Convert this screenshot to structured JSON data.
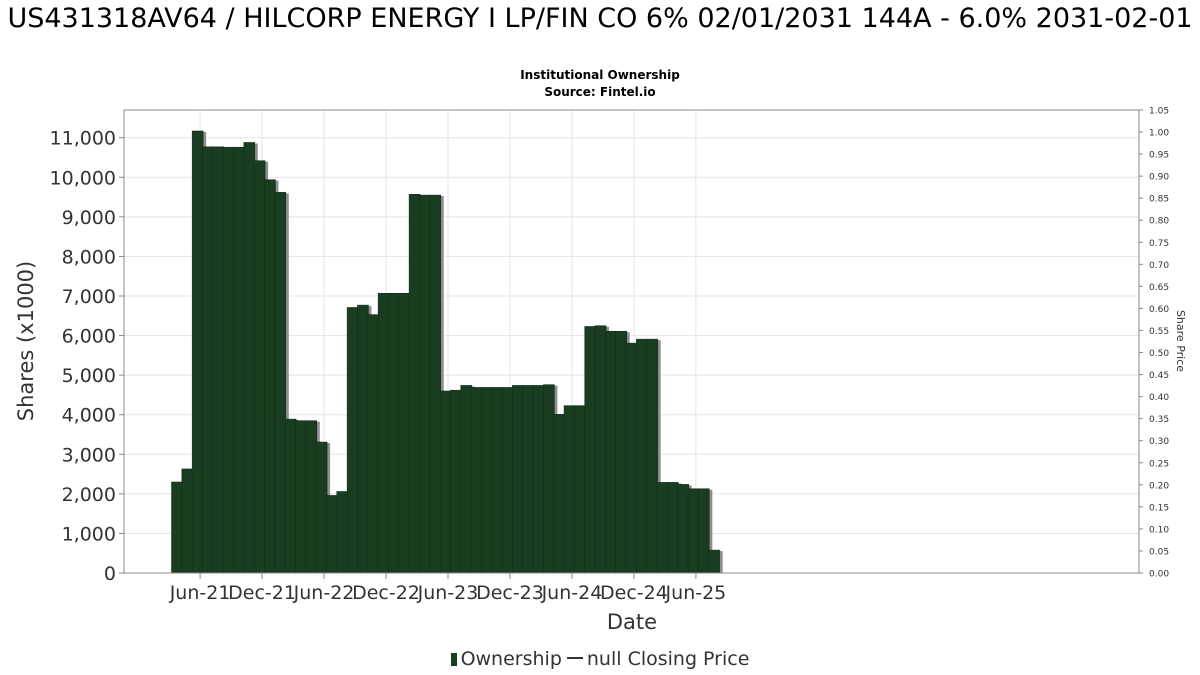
{
  "title": "US431318AV64 / HILCORP ENERGY I LP/FIN CO 6% 02/01/2031 144A - 6.0% 2031-02-01",
  "subtitle": "Institutional Ownership",
  "source": "Source: Fintel.io",
  "colors": {
    "bar": "#1a3d22",
    "bar_shadow": "#8f8f8f",
    "grid": "#e4e4e4",
    "text": "#333333"
  },
  "chart_data": {
    "type": "bar",
    "xlabel": "Date",
    "ylabel": "Shares (x1000)",
    "y2label": "Share Price",
    "ylim": [
      0,
      11700
    ],
    "y2lim": [
      0,
      1.05
    ],
    "yticks": [
      "0",
      "1,000",
      "2,000",
      "3,000",
      "4,000",
      "5,000",
      "6,000",
      "7,000",
      "8,000",
      "9,000",
      "10,000",
      "11,000"
    ],
    "y2ticks": [
      "0.00",
      "0.05",
      "0.10",
      "0.15",
      "0.20",
      "0.25",
      "0.30",
      "0.35",
      "0.40",
      "0.45",
      "0.50",
      "0.55",
      "0.60",
      "0.65",
      "0.70",
      "0.75",
      "0.80",
      "0.85",
      "0.90",
      "0.95",
      "1.00",
      "1.05"
    ],
    "xtick_labels": [
      "Jun-21",
      "Dec-21",
      "Jun-22",
      "Dec-22",
      "Jun-23",
      "Dec-23",
      "Jun-24",
      "Dec-24",
      "Jun-25"
    ],
    "grid": true,
    "legend_position": "bottom",
    "series": [
      {
        "name": "Ownership",
        "values": [
          2300,
          2630,
          11170,
          10770,
          10770,
          10760,
          10760,
          10880,
          10420,
          9940,
          9620,
          3890,
          3850,
          3850,
          3310,
          1960,
          2060,
          6710,
          6770,
          6530,
          7070,
          7070,
          7070,
          9570,
          9550,
          9550,
          4600,
          4620,
          4740,
          4690,
          4690,
          4690,
          4690,
          4740,
          4740,
          4740,
          4760,
          4010,
          4230,
          4230,
          6230,
          6250,
          6110,
          6110,
          5810,
          5910,
          5910,
          2290,
          2290,
          2240,
          2130,
          2130,
          580
        ]
      },
      {
        "name": "null Closing Price",
        "values": []
      }
    ]
  }
}
